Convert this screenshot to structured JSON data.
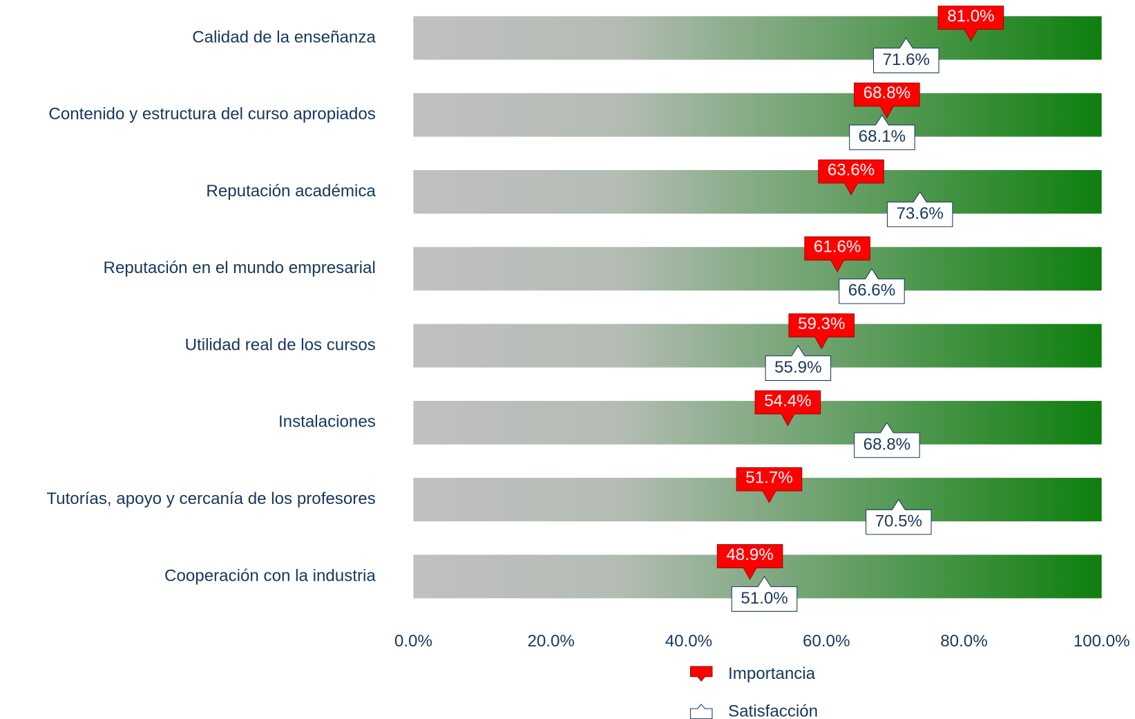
{
  "chart_data": {
    "type": "marker-bar",
    "categories": [
      "Calidad de la enseñanza",
      "Contenido y estructura del curso apropiados",
      "Reputación académica",
      "Reputación en el mundo empresarial",
      "Utilidad real de los cursos",
      "Instalaciones",
      "Tutorías, apoyo y cercanía de los profesores",
      "Cooperación con la industria"
    ],
    "series": [
      {
        "name": "Importancia",
        "color": "#ff0000",
        "values": [
          81.0,
          68.8,
          63.6,
          61.6,
          59.3,
          54.4,
          51.7,
          48.9
        ],
        "value_labels": [
          "81.0%",
          "68.8%",
          "63.6%",
          "61.6%",
          "59.3%",
          "54.4%",
          "51.7%",
          "48.9%"
        ]
      },
      {
        "name": "Satisfacción",
        "color": "#ffffff",
        "values": [
          71.6,
          68.1,
          73.6,
          66.6,
          55.9,
          68.8,
          70.5,
          51.0
        ],
        "value_labels": [
          "71.6%",
          "68.1%",
          "73.6%",
          "66.6%",
          "55.9%",
          "68.8%",
          "70.5%",
          "51.0%"
        ]
      }
    ],
    "xlim": [
      0,
      100
    ],
    "xticks": [
      {
        "value": 0,
        "label": "0.0%"
      },
      {
        "value": 20,
        "label": "20.0%"
      },
      {
        "value": 40,
        "label": "40.0%"
      },
      {
        "value": 60,
        "label": "60.0%"
      },
      {
        "value": 80,
        "label": "80.0%"
      },
      {
        "value": 100,
        "label": "100.0%"
      }
    ],
    "legend": "bottom"
  }
}
